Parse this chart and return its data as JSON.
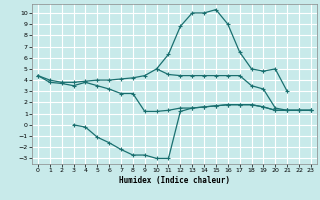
{
  "xlabel": "Humidex (Indice chaleur)",
  "bg_color": "#c8eaea",
  "grid_color": "#ffffff",
  "line_color": "#1a7070",
  "xlim": [
    -0.5,
    23.5
  ],
  "ylim": [
    -3.5,
    10.8
  ],
  "line1_x": [
    0,
    1,
    2,
    3,
    4,
    5,
    6,
    7,
    8,
    9,
    10,
    11,
    12,
    13,
    14,
    15,
    16,
    17,
    18,
    19,
    20,
    21,
    22,
    23
  ],
  "line1_y": [
    4.4,
    4.0,
    3.8,
    3.8,
    3.9,
    4.0,
    4.0,
    4.1,
    4.2,
    4.4,
    5.0,
    4.5,
    4.4,
    4.4,
    4.4,
    4.4,
    4.4,
    4.4,
    3.5,
    3.2,
    1.5,
    1.3,
    1.3,
    1.3
  ],
  "line2_x": [
    0,
    1,
    2,
    3,
    4,
    5,
    6,
    7,
    8,
    9,
    10,
    11,
    12,
    13,
    14,
    15,
    16,
    17,
    18,
    19,
    20,
    21,
    22,
    23
  ],
  "line2_y": [
    4.4,
    3.8,
    3.7,
    3.5,
    3.8,
    3.5,
    3.2,
    2.8,
    2.8,
    1.2,
    1.2,
    1.3,
    1.5,
    1.5,
    1.6,
    1.7,
    1.8,
    1.8,
    1.8,
    1.6,
    1.3,
    1.3,
    1.3,
    1.3
  ],
  "line3_x": [
    3,
    4,
    5,
    6,
    7,
    8,
    9,
    10,
    11,
    12,
    13,
    14,
    15,
    16,
    17,
    18,
    19,
    20,
    21,
    22,
    23
  ],
  "line3_y": [
    0.0,
    -0.2,
    -1.1,
    -1.6,
    -2.2,
    -2.7,
    -2.7,
    -3.0,
    -3.0,
    1.2,
    1.5,
    1.6,
    1.7,
    1.8,
    1.8,
    1.8,
    1.6,
    1.3,
    1.3,
    1.3,
    1.3
  ],
  "line4_x": [
    10,
    11,
    12,
    13,
    14,
    15,
    16,
    17,
    18,
    19,
    20,
    21
  ],
  "line4_y": [
    5.0,
    6.3,
    8.8,
    10.0,
    10.0,
    10.3,
    9.0,
    6.5,
    5.0,
    4.8,
    5.0,
    3.0
  ],
  "xticks": [
    0,
    1,
    2,
    3,
    4,
    5,
    6,
    7,
    8,
    9,
    10,
    11,
    12,
    13,
    14,
    15,
    16,
    17,
    18,
    19,
    20,
    21,
    22,
    23
  ],
  "yticks": [
    -3,
    -2,
    -1,
    0,
    1,
    2,
    3,
    4,
    5,
    6,
    7,
    8,
    9,
    10
  ]
}
